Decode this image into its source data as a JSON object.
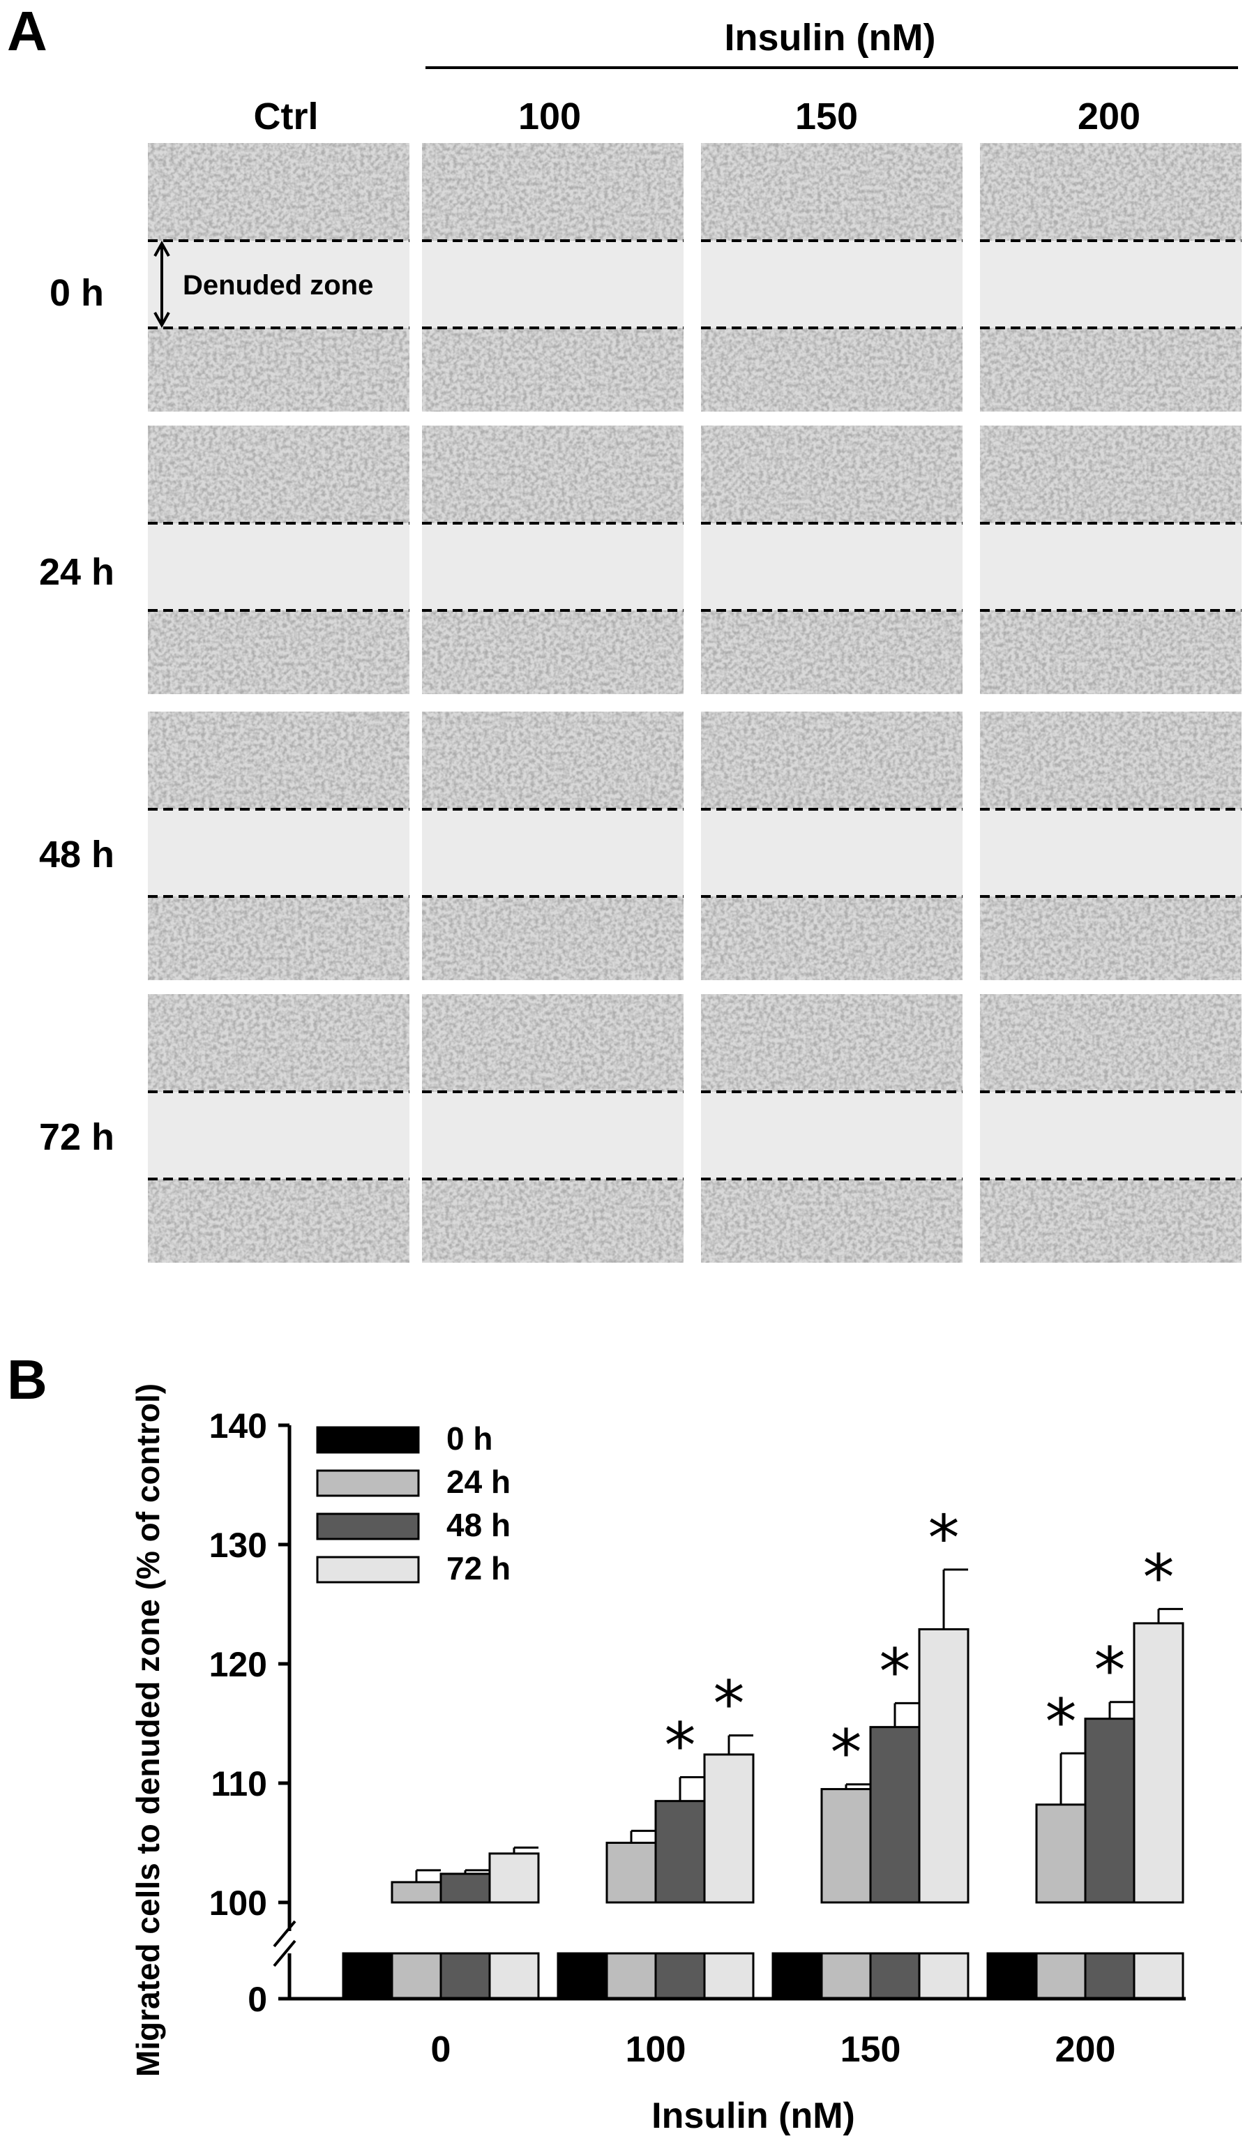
{
  "panel_a": {
    "label": "A",
    "group_header": "Insulin (nM)",
    "columns": [
      "Ctrl",
      "100",
      "150",
      "200"
    ],
    "rows": [
      "0 h",
      "24 h",
      "48 h",
      "72 h"
    ],
    "annotation": "Denuded zone"
  },
  "panel_b": {
    "label": "B"
  },
  "chart_data": {
    "type": "bar",
    "categories": [
      "0",
      "100",
      "150",
      "200"
    ],
    "xlabel": "Insulin (nM)",
    "ylabel": "Migrated cells to denuded zone (% of control)",
    "ylim": [
      100,
      140
    ],
    "axis_break": true,
    "yticks": [
      "0",
      "100",
      "110",
      "120",
      "130",
      "140"
    ],
    "legend_position": "top-left",
    "series": [
      {
        "name": "0 h",
        "color": "#000000",
        "values": [
          100,
          100,
          100,
          100
        ],
        "errors": [
          0,
          0,
          0,
          0
        ],
        "significant": [
          false,
          false,
          false,
          false
        ]
      },
      {
        "name": "24 h",
        "color": "#bdbdbd",
        "values": [
          101.7,
          105.0,
          109.5,
          108.2
        ],
        "errors": [
          1.0,
          1.0,
          0.4,
          4.3
        ],
        "significant": [
          false,
          false,
          true,
          true
        ]
      },
      {
        "name": "48 h",
        "color": "#5a5a5a",
        "values": [
          102.4,
          108.5,
          114.7,
          115.4
        ],
        "errors": [
          0.3,
          2.0,
          2.0,
          1.4
        ],
        "significant": [
          false,
          true,
          true,
          true
        ]
      },
      {
        "name": "72 h",
        "color": "#e4e4e4",
        "values": [
          104.1,
          112.4,
          122.9,
          123.4
        ],
        "errors": [
          0.5,
          1.6,
          5.0,
          1.2
        ],
        "significant": [
          false,
          true,
          true,
          true
        ]
      }
    ],
    "significance_marker": "*"
  }
}
